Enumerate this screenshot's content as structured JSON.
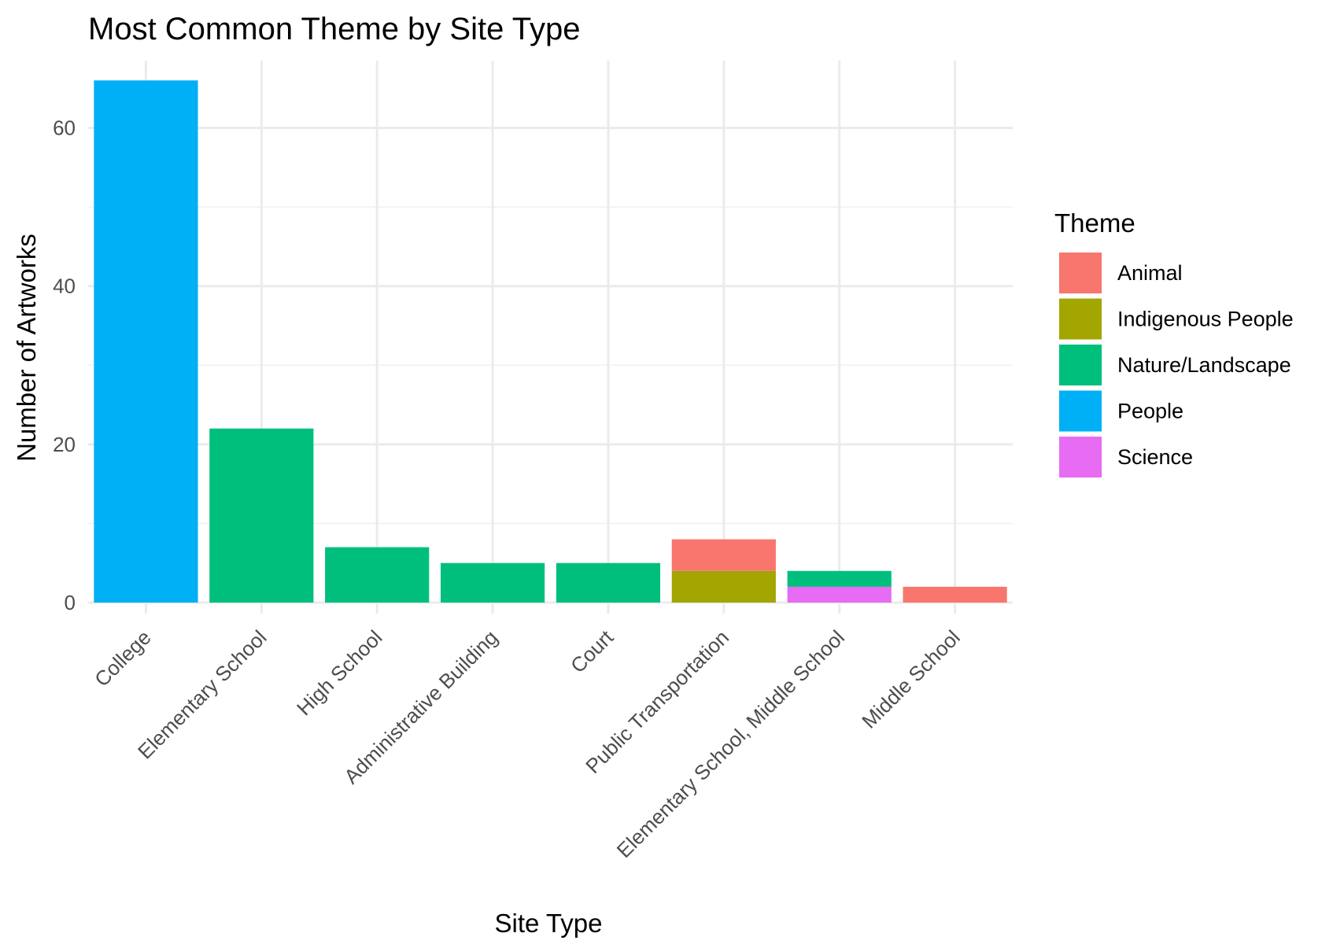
{
  "chart_data": {
    "type": "bar",
    "stacked": true,
    "title": "Most Common Theme by Site Type",
    "xlabel": "Site Type",
    "ylabel": "Number of Artworks",
    "ylim": [
      0,
      70
    ],
    "yticks": [
      0,
      20,
      40,
      60
    ],
    "grid": true,
    "legend_position": "right",
    "legend_title": "Theme",
    "categories": [
      "College",
      "Elementary School",
      "High School",
      "Administrative Building",
      "Court",
      "Public Transportation",
      "Elementary School, Middle School",
      "Middle School"
    ],
    "series": [
      {
        "name": "Animal",
        "color": "#F8766D",
        "values": [
          0,
          0,
          0,
          0,
          0,
          4,
          0,
          2
        ]
      },
      {
        "name": "Indigenous People",
        "color": "#A3A500",
        "values": [
          0,
          0,
          0,
          0,
          0,
          4,
          0,
          0
        ]
      },
      {
        "name": "Nature/Landscape",
        "color": "#00BF7D",
        "values": [
          0,
          22,
          7,
          5,
          5,
          0,
          2,
          0
        ]
      },
      {
        "name": "People",
        "color": "#00B0F6",
        "values": [
          66,
          0,
          0,
          0,
          0,
          0,
          0,
          0
        ]
      },
      {
        "name": "Science",
        "color": "#E76BF3",
        "values": [
          0,
          0,
          0,
          0,
          0,
          0,
          2,
          0
        ]
      }
    ]
  }
}
